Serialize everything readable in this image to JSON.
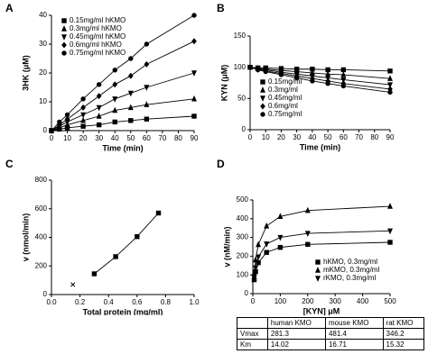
{
  "chart_data": [
    {
      "type": "line",
      "label": "A",
      "xlabel": "Time (min)",
      "ylabel": "3HK (μM)",
      "x": [
        0,
        5,
        10,
        20,
        30,
        40,
        50,
        60,
        90
      ],
      "xlim": [
        0,
        90
      ],
      "xticks": [
        0,
        10,
        20,
        30,
        40,
        50,
        60,
        70,
        80,
        90
      ],
      "ylim": [
        0,
        40
      ],
      "yticks": [
        0,
        10,
        20,
        30,
        40
      ],
      "legend": "upper left",
      "series": [
        {
          "name": "0.15mg/ml hKMO",
          "color": "#000000",
          "marker": "square",
          "values": [
            0,
            0.5,
            1,
            1.5,
            2,
            3,
            3.5,
            4,
            5
          ]
        },
        {
          "name": "0.3mg/ml hKMO",
          "color": "#000000",
          "marker": "triangle",
          "values": [
            0,
            1,
            2,
            3.5,
            5,
            7,
            8,
            9,
            11
          ]
        },
        {
          "name": "0.45mg/ml hKMO",
          "color": "#000000",
          "marker": "triangle-down",
          "values": [
            0,
            1.5,
            3,
            5.5,
            8,
            11,
            13,
            15,
            20
          ]
        },
        {
          "name": "0.6mg/ml hKMO",
          "color": "#000000",
          "marker": "diamond",
          "values": [
            0,
            2,
            4,
            8,
            12,
            16,
            19,
            23,
            31
          ]
        },
        {
          "name": "0.75mg/ml hKMO",
          "color": "#000000",
          "marker": "circle",
          "values": [
            0,
            3,
            5.5,
            11,
            16,
            21,
            25,
            30,
            40
          ]
        }
      ]
    },
    {
      "type": "line",
      "label": "B",
      "xlabel": "Time (min)",
      "ylabel": "KYN (μM)",
      "x": [
        0,
        5,
        10,
        20,
        30,
        40,
        50,
        60,
        90
      ],
      "xlim": [
        0,
        90
      ],
      "xticks": [
        0,
        10,
        20,
        30,
        40,
        50,
        60,
        70,
        80,
        90
      ],
      "ylim": [
        0,
        150
      ],
      "yticks": [
        0,
        50,
        100,
        150
      ],
      "legend": "lower left",
      "series": [
        {
          "name": "0.15mg/ml",
          "color": "#000000",
          "marker": "square",
          "values": [
            100,
            99,
            99,
            98,
            97,
            97,
            96,
            96,
            94
          ]
        },
        {
          "name": "0.3mg/ml",
          "color": "#000000",
          "marker": "triangle",
          "values": [
            100,
            98,
            97,
            95,
            93,
            91,
            89,
            88,
            82
          ]
        },
        {
          "name": "0.45mg/ml",
          "color": "#000000",
          "marker": "triangle-down",
          "values": [
            100,
            97,
            96,
            92,
            89,
            86,
            83,
            80,
            72
          ]
        },
        {
          "name": "0.6mg/ml",
          "color": "#000000",
          "marker": "diamond",
          "values": [
            100,
            96,
            94,
            90,
            86,
            82,
            78,
            74,
            65
          ]
        },
        {
          "name": "0.75mg/ml",
          "color": "#000000",
          "marker": "circle",
          "values": [
            100,
            96,
            93,
            88,
            83,
            78,
            74,
            70,
            60
          ]
        }
      ]
    },
    {
      "type": "scatter",
      "label": "C",
      "xlabel": "Total protein (mg/ml)",
      "ylabel": "v (nmol/min)",
      "xlim": [
        0,
        1
      ],
      "xticks": [
        {
          "value": 0,
          "label": "0.0"
        },
        {
          "value": 0.2,
          "label": "0.2"
        },
        {
          "value": 0.4,
          "label": "0.4"
        },
        {
          "value": 0.6,
          "label": "0.6"
        },
        {
          "value": 0.8,
          "label": "0.8"
        },
        {
          "value": 1,
          "label": "1.0"
        }
      ],
      "ylim": [
        0,
        800
      ],
      "yticks": [
        0,
        200,
        400,
        600,
        800
      ],
      "series": [
        {
          "color": "#000000",
          "marker": "square",
          "line": true,
          "x": [
            0.3,
            0.45,
            0.6,
            0.75
          ],
          "values": [
            145,
            265,
            405,
            570
          ]
        },
        {
          "color": "#000000",
          "marker": "x",
          "line": false,
          "x": [
            0.15
          ],
          "values": [
            70
          ]
        }
      ]
    },
    {
      "type": "line",
      "label": "D",
      "xlabel": "[KYN] μM",
      "ylabel": "v (nM/min)",
      "x": [
        5,
        10,
        20,
        50,
        100,
        200,
        500
      ],
      "xlim": [
        0,
        500
      ],
      "xticks": [
        0,
        100,
        200,
        300,
        400,
        500
      ],
      "ylim": [
        0,
        500
      ],
      "yticks": [
        0,
        100,
        200,
        300,
        400,
        500
      ],
      "legend": "lower right",
      "series": [
        {
          "name": "hKMO, 0.3mg/ml",
          "color": "#000000",
          "marker": "square",
          "values": [
            74,
            117,
            165,
            220,
            247,
            263,
            274
          ]
        },
        {
          "name": "mKMO, 0.3mg/ml",
          "color": "#000000",
          "marker": "triangle",
          "values": [
            110,
            180,
            262,
            361,
            412,
            444,
            466
          ]
        },
        {
          "name": "rKMO, 0.3mg/ml",
          "color": "#000000",
          "marker": "triangle-down",
          "values": [
            85,
            137,
            196,
            265,
            300,
            322,
            335
          ]
        }
      ]
    }
  ],
  "table": {
    "columns": [
      "human KMO",
      "mouse KMO",
      "rat KMO"
    ],
    "rows": [
      {
        "label": "Vmax",
        "values": [
          "281.3",
          "481.4",
          "346.2"
        ]
      },
      {
        "label": "Km",
        "values": [
          "14.02",
          "16.71",
          "15.32"
        ]
      }
    ]
  }
}
